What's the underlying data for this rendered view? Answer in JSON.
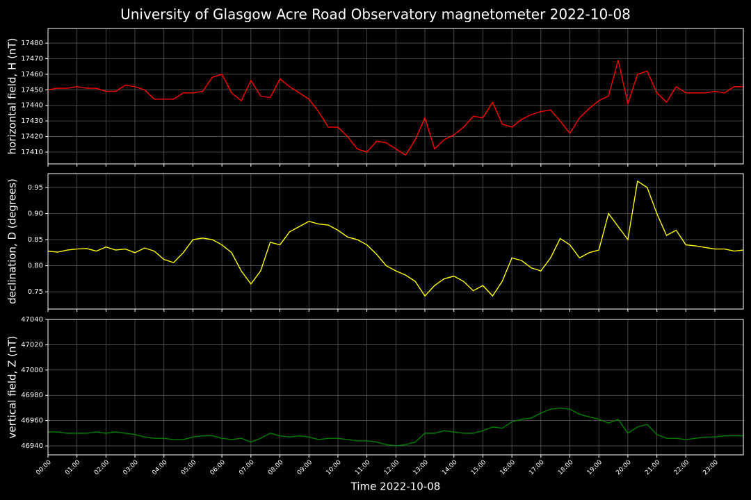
{
  "title": "University of Glasgow Acre Road Observatory magnetometer 2022-10-08",
  "xlabel": "Time 2022-10-08",
  "xlim": [
    "00:00",
    "23:59"
  ],
  "xticks": [
    "00:00",
    "01:00",
    "02:00",
    "03:00",
    "04:00",
    "05:00",
    "06:00",
    "07:00",
    "08:00",
    "09:00",
    "10:00",
    "11:00",
    "12:00",
    "13:00",
    "14:00",
    "15:00",
    "16:00",
    "17:00",
    "18:00",
    "19:00",
    "20:00",
    "21:00",
    "22:00",
    "23:00"
  ],
  "x": [
    "00:00",
    "00:20",
    "00:40",
    "01:00",
    "01:20",
    "01:40",
    "02:00",
    "02:20",
    "02:40",
    "03:00",
    "03:20",
    "03:40",
    "04:00",
    "04:20",
    "04:40",
    "05:00",
    "05:20",
    "05:40",
    "06:00",
    "06:20",
    "06:40",
    "07:00",
    "07:20",
    "07:40",
    "08:00",
    "08:20",
    "08:40",
    "09:00",
    "09:20",
    "09:40",
    "10:00",
    "10:20",
    "10:40",
    "11:00",
    "11:20",
    "11:40",
    "12:00",
    "12:20",
    "12:40",
    "13:00",
    "13:20",
    "13:40",
    "14:00",
    "14:20",
    "14:40",
    "15:00",
    "15:20",
    "15:40",
    "16:00",
    "16:20",
    "16:40",
    "17:00",
    "17:20",
    "17:40",
    "18:00",
    "18:20",
    "18:40",
    "19:00",
    "19:20",
    "19:40",
    "20:00",
    "20:20",
    "20:40",
    "21:00",
    "21:20",
    "21:40",
    "22:00",
    "22:20",
    "22:40",
    "23:00",
    "23:20",
    "23:40",
    "23:59"
  ],
  "chart_data": [
    {
      "type": "line",
      "ylabel": "horizontal field, H (nT)",
      "ylim": [
        17402.4,
        17489.4
      ],
      "yticks": [
        17410,
        17420,
        17430,
        17440,
        17450,
        17460,
        17470,
        17480
      ],
      "grid": true,
      "series": [
        {
          "color": "#ff0000",
          "values": [
            17450,
            17451,
            17451,
            17452,
            17451,
            17451,
            17449,
            17449,
            17453,
            17452,
            17450,
            17444,
            17444,
            17444,
            17448,
            17448,
            17449,
            17458,
            17460,
            17448,
            17443,
            17456,
            17446,
            17445,
            17457,
            17452,
            17448,
            17444,
            17436,
            17426,
            17426,
            17420,
            17412,
            17410,
            17417,
            17416,
            17412,
            17408,
            17418,
            17432,
            17412,
            17418,
            17421,
            17426,
            17433,
            17432,
            17442,
            17428,
            17426,
            17431,
            17434,
            17436,
            17437,
            17430,
            17422,
            17432,
            17438,
            17443,
            17446,
            17469,
            17441,
            17460,
            17462,
            17448,
            17442,
            17452,
            17448,
            17448,
            17448,
            17449,
            17448,
            17452,
            17452
          ]
        }
      ]
    },
    {
      "type": "line",
      "ylabel": "declination, D (degrees)",
      "ylim": [
        0.717,
        0.9765
      ],
      "yticks": [
        0.75,
        {
          "value": 0.8,
          "label": "0.80"
        },
        0.85,
        {
          "value": 0.9,
          "label": "0.90"
        },
        0.95
      ],
      "grid": true,
      "series": [
        {
          "color": "#ffff00",
          "values": [
            0.828,
            0.826,
            0.83,
            0.832,
            0.833,
            0.828,
            0.836,
            0.83,
            0.832,
            0.825,
            0.834,
            0.828,
            0.812,
            0.806,
            0.825,
            0.85,
            0.853,
            0.85,
            0.84,
            0.825,
            0.79,
            0.765,
            0.79,
            0.845,
            0.84,
            0.865,
            0.875,
            0.885,
            0.88,
            0.878,
            0.868,
            0.855,
            0.85,
            0.84,
            0.822,
            0.8,
            0.79,
            0.782,
            0.77,
            0.742,
            0.762,
            0.775,
            0.78,
            0.77,
            0.752,
            0.762,
            0.742,
            0.77,
            0.815,
            0.81,
            0.796,
            0.79,
            0.815,
            0.852,
            0.84,
            0.815,
            0.825,
            0.83,
            0.9,
            0.875,
            0.85,
            0.962,
            0.95,
            0.9,
            0.858,
            0.868,
            0.84,
            0.838,
            0.835,
            0.832,
            0.832,
            0.828,
            0.83
          ]
        }
      ]
    },
    {
      "type": "line",
      "ylabel": "vertical field, Z (nT)",
      "ylim": [
        46932.9,
        47040
      ],
      "yticks": [
        46940,
        46960,
        46980,
        47000,
        47020,
        47040
      ],
      "grid": true,
      "series": [
        {
          "color": "#008000",
          "values": [
            46951,
            46951,
            46950,
            46950,
            46950,
            46951,
            46950,
            46951,
            46950,
            46949,
            46947,
            46946,
            46946,
            46945,
            46945,
            46947,
            46948,
            46948,
            46946,
            46945,
            46946,
            46943,
            46946,
            46950,
            46948,
            46947,
            46948,
            46947,
            46945,
            46946,
            46946,
            46945,
            46944,
            46944,
            46943,
            46941,
            46940,
            46941,
            46943,
            46950,
            46950,
            46952,
            46951,
            46950,
            46950,
            46952,
            46955,
            46954,
            46959,
            46961,
            46962,
            46966,
            46969,
            46970,
            46969,
            46965,
            46963,
            46961,
            46958,
            46961,
            46950,
            46955,
            46957,
            46949,
            46946,
            46946,
            46945,
            46946,
            46947,
            46947,
            46948,
            46948,
            46948
          ]
        }
      ]
    }
  ]
}
